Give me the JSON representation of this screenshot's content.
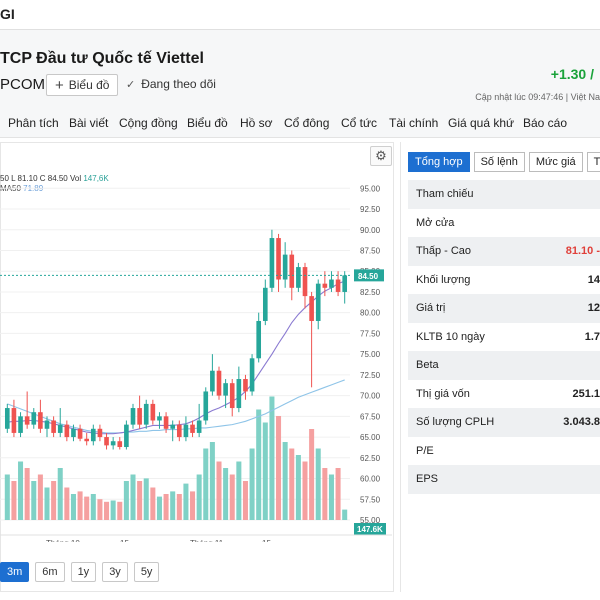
{
  "topbar": {
    "brand": "GI"
  },
  "header": {
    "company": "TCP Đầu tư Quốc tế Viettel",
    "exchange": "PCOM",
    "chart_button": "Biểu đồ",
    "follow_label": "Đang theo dõi",
    "price_change": "+1.30 /",
    "updated": "Cập nhật lúc  09:47:46 | Việt Na"
  },
  "tabs": [
    "Phân tích",
    "Bài viết",
    "Cộng đồng",
    "Biểu đồ",
    "Hồ sơ",
    "Cổ đông",
    "Cổ tức",
    "Tài chính",
    "Giá quá khứ",
    "Báo cáo"
  ],
  "legend": {
    "ohl": "50 L 81.10 C 84.50 Vol",
    "vol": "147,6K",
    "ma_label": "MA50",
    "ma_value": "71.89"
  },
  "chart_data": {
    "type": "candlestick",
    "y_ticks": [
      "95.00",
      "92.50",
      "90.00",
      "87.50",
      "85.00",
      "82.50",
      "80.00",
      "77.50",
      "75.00",
      "72.50",
      "70.00",
      "67.50",
      "65.00",
      "62.50",
      "60.00",
      "57.50",
      "55.00"
    ],
    "ylim": [
      55,
      96
    ],
    "x_ticks": [
      "Tháng 10",
      "15",
      "Tháng 11",
      "15"
    ],
    "last_price_label": "84.50",
    "volume_label": "147.6K",
    "candles": [
      {
        "o": 66.0,
        "c": 68.5,
        "h": 69.0,
        "l": 65.5,
        "v": 0.35
      },
      {
        "o": 68.5,
        "c": 65.5,
        "h": 69.5,
        "l": 65.0,
        "v": 0.3
      },
      {
        "o": 65.5,
        "c": 67.5,
        "h": 68.0,
        "l": 65.0,
        "v": 0.45
      },
      {
        "o": 67.5,
        "c": 66.5,
        "h": 70.5,
        "l": 66.0,
        "v": 0.4
      },
      {
        "o": 66.5,
        "c": 68.0,
        "h": 68.5,
        "l": 66.0,
        "v": 0.3
      },
      {
        "o": 68.0,
        "c": 66.0,
        "h": 69.5,
        "l": 65.5,
        "v": 0.35
      },
      {
        "o": 66.0,
        "c": 67.0,
        "h": 67.5,
        "l": 65.0,
        "v": 0.25
      },
      {
        "o": 67.0,
        "c": 65.5,
        "h": 67.5,
        "l": 65.0,
        "v": 0.3
      },
      {
        "o": 65.5,
        "c": 66.5,
        "h": 68.5,
        "l": 65.0,
        "v": 0.4
      },
      {
        "o": 66.5,
        "c": 65.0,
        "h": 67.0,
        "l": 64.5,
        "v": 0.25
      },
      {
        "o": 65.0,
        "c": 66.0,
        "h": 66.5,
        "l": 64.5,
        "v": 0.2
      },
      {
        "o": 66.0,
        "c": 64.8,
        "h": 66.5,
        "l": 64.5,
        "v": 0.22
      },
      {
        "o": 64.8,
        "c": 64.5,
        "h": 65.5,
        "l": 64.0,
        "v": 0.18
      },
      {
        "o": 64.5,
        "c": 66.0,
        "h": 66.5,
        "l": 64.0,
        "v": 0.2
      },
      {
        "o": 66.0,
        "c": 65.0,
        "h": 66.5,
        "l": 64.5,
        "v": 0.16
      },
      {
        "o": 65.0,
        "c": 64.0,
        "h": 65.5,
        "l": 63.5,
        "v": 0.14
      },
      {
        "o": 64.0,
        "c": 64.5,
        "h": 65.0,
        "l": 63.5,
        "v": 0.15
      },
      {
        "o": 64.5,
        "c": 63.8,
        "h": 65.0,
        "l": 63.5,
        "v": 0.14
      },
      {
        "o": 63.8,
        "c": 66.5,
        "h": 67.0,
        "l": 63.5,
        "v": 0.3
      },
      {
        "o": 66.5,
        "c": 68.5,
        "h": 69.0,
        "l": 66.0,
        "v": 0.35
      },
      {
        "o": 68.5,
        "c": 66.5,
        "h": 70.0,
        "l": 66.0,
        "v": 0.3
      },
      {
        "o": 66.5,
        "c": 69.0,
        "h": 69.5,
        "l": 66.0,
        "v": 0.32
      },
      {
        "o": 69.0,
        "c": 67.0,
        "h": 69.5,
        "l": 66.5,
        "v": 0.25
      },
      {
        "o": 67.0,
        "c": 67.5,
        "h": 68.0,
        "l": 66.0,
        "v": 0.18
      },
      {
        "o": 67.5,
        "c": 66.0,
        "h": 68.0,
        "l": 65.5,
        "v": 0.2
      },
      {
        "o": 66.0,
        "c": 66.5,
        "h": 67.0,
        "l": 64.5,
        "v": 0.22
      },
      {
        "o": 66.5,
        "c": 65.0,
        "h": 67.0,
        "l": 64.5,
        "v": 0.2
      },
      {
        "o": 65.0,
        "c": 66.5,
        "h": 67.5,
        "l": 64.5,
        "v": 0.28
      },
      {
        "o": 66.5,
        "c": 65.5,
        "h": 67.0,
        "l": 65.0,
        "v": 0.22
      },
      {
        "o": 65.5,
        "c": 67.0,
        "h": 69.0,
        "l": 65.0,
        "v": 0.35
      },
      {
        "o": 67.0,
        "c": 70.5,
        "h": 71.0,
        "l": 66.5,
        "v": 0.55
      },
      {
        "o": 70.5,
        "c": 73.0,
        "h": 75.0,
        "l": 70.0,
        "v": 0.6
      },
      {
        "o": 73.0,
        "c": 70.0,
        "h": 73.5,
        "l": 69.5,
        "v": 0.45
      },
      {
        "o": 70.0,
        "c": 71.5,
        "h": 72.0,
        "l": 68.5,
        "v": 0.4
      },
      {
        "o": 71.5,
        "c": 68.5,
        "h": 72.0,
        "l": 67.5,
        "v": 0.35
      },
      {
        "o": 68.5,
        "c": 72.0,
        "h": 73.5,
        "l": 68.0,
        "v": 0.45
      },
      {
        "o": 72.0,
        "c": 70.5,
        "h": 72.5,
        "l": 69.5,
        "v": 0.3
      },
      {
        "o": 70.5,
        "c": 74.5,
        "h": 75.0,
        "l": 70.0,
        "v": 0.55
      },
      {
        "o": 74.5,
        "c": 79.0,
        "h": 80.0,
        "l": 74.0,
        "v": 0.85
      },
      {
        "o": 79.0,
        "c": 83.0,
        "h": 84.0,
        "l": 78.5,
        "v": 0.75
      },
      {
        "o": 83.0,
        "c": 89.0,
        "h": 90.0,
        "l": 82.5,
        "v": 0.95
      },
      {
        "o": 89.0,
        "c": 84.0,
        "h": 89.5,
        "l": 82.5,
        "v": 0.8
      },
      {
        "o": 84.0,
        "c": 87.0,
        "h": 88.5,
        "l": 83.0,
        "v": 0.6
      },
      {
        "o": 87.0,
        "c": 83.0,
        "h": 87.5,
        "l": 81.5,
        "v": 0.55
      },
      {
        "o": 83.0,
        "c": 85.5,
        "h": 86.0,
        "l": 82.5,
        "v": 0.5
      },
      {
        "o": 85.5,
        "c": 82.0,
        "h": 86.0,
        "l": 80.5,
        "v": 0.45
      },
      {
        "o": 82.0,
        "c": 79.0,
        "h": 82.5,
        "l": 71.0,
        "v": 0.7
      },
      {
        "o": 79.0,
        "c": 83.5,
        "h": 84.0,
        "l": 78.0,
        "v": 0.55
      },
      {
        "o": 83.5,
        "c": 83.0,
        "h": 85.0,
        "l": 82.0,
        "v": 0.4
      },
      {
        "o": 83.0,
        "c": 84.0,
        "h": 85.0,
        "l": 82.5,
        "v": 0.35
      },
      {
        "o": 84.0,
        "c": 82.5,
        "h": 85.0,
        "l": 82.0,
        "v": 0.4
      },
      {
        "o": 82.5,
        "c": 84.5,
        "h": 85.0,
        "l": 81.1,
        "v": 0.08
      }
    ],
    "ma20": [
      66.8,
      66.9,
      66.9,
      67.0,
      67.0,
      66.9,
      66.8,
      66.6,
      66.4,
      66.2,
      66.0,
      65.8,
      65.6,
      65.5,
      65.4,
      65.4,
      65.4,
      65.5,
      65.6,
      65.8,
      66.0,
      66.2,
      66.4,
      66.4,
      66.4,
      66.4,
      66.5,
      66.6,
      66.9,
      67.3,
      67.8,
      68.2,
      68.5,
      68.9,
      69.3,
      69.8,
      70.5,
      71.4,
      72.6,
      73.8,
      75.0,
      76.3,
      77.5,
      78.8,
      79.8,
      80.6,
      81.3,
      82.0,
      82.6,
      83.0,
      83.5,
      83.8
    ],
    "ma50": [
      69.0,
      68.7,
      68.4,
      68.1,
      67.8,
      67.5,
      67.2,
      66.9,
      66.6,
      66.4,
      66.2,
      66.0,
      65.8,
      65.7,
      65.6,
      65.5,
      65.5,
      65.5,
      65.6,
      65.6,
      65.7,
      65.7,
      65.8,
      65.8,
      65.9,
      65.9,
      65.9,
      66.0,
      66.0,
      66.1,
      66.1,
      66.2,
      66.3,
      66.4,
      66.5,
      66.7,
      66.9,
      67.2,
      67.5,
      67.8,
      68.2,
      68.6,
      69.0,
      69.4,
      69.8,
      70.1,
      70.4,
      70.7,
      71.0,
      71.3,
      71.6,
      71.89
    ],
    "colors": {
      "up": "#26a69a",
      "down": "#ef5350",
      "up_vol": "#7fd1c6",
      "down_vol": "#f5a0a0",
      "ma20": "#8a7ad1",
      "ma50": "#8ec4e8"
    }
  },
  "ranges": [
    {
      "label": "3m",
      "active": true
    },
    {
      "label": "6m",
      "active": false
    },
    {
      "label": "1y",
      "active": false
    },
    {
      "label": "3y",
      "active": false
    },
    {
      "label": "5y",
      "active": false
    }
  ],
  "side_tabs": [
    {
      "label": "Tổng hợp",
      "active": true
    },
    {
      "label": "Số lệnh",
      "active": false
    },
    {
      "label": "Mức giá",
      "active": false
    },
    {
      "label": "Thố",
      "active": false
    }
  ],
  "stats": [
    {
      "label": "Tham chiếu",
      "value": ""
    },
    {
      "label": "Mở cửa",
      "value": ""
    },
    {
      "label": "Thấp - Cao",
      "value": "81.10  -",
      "red": true
    },
    {
      "label": "Khối lượng",
      "value": "14"
    },
    {
      "label": "Giá trị",
      "value": "12"
    },
    {
      "label": "KLTB 10 ngày",
      "value": "1.7"
    },
    {
      "label": "Beta",
      "value": ""
    },
    {
      "label": "Thị giá vốn",
      "value": "251.1"
    },
    {
      "label": "Số lượng CPLH",
      "value": "3.043.8"
    },
    {
      "label": "P/E",
      "value": ""
    },
    {
      "label": "EPS",
      "value": ""
    }
  ]
}
